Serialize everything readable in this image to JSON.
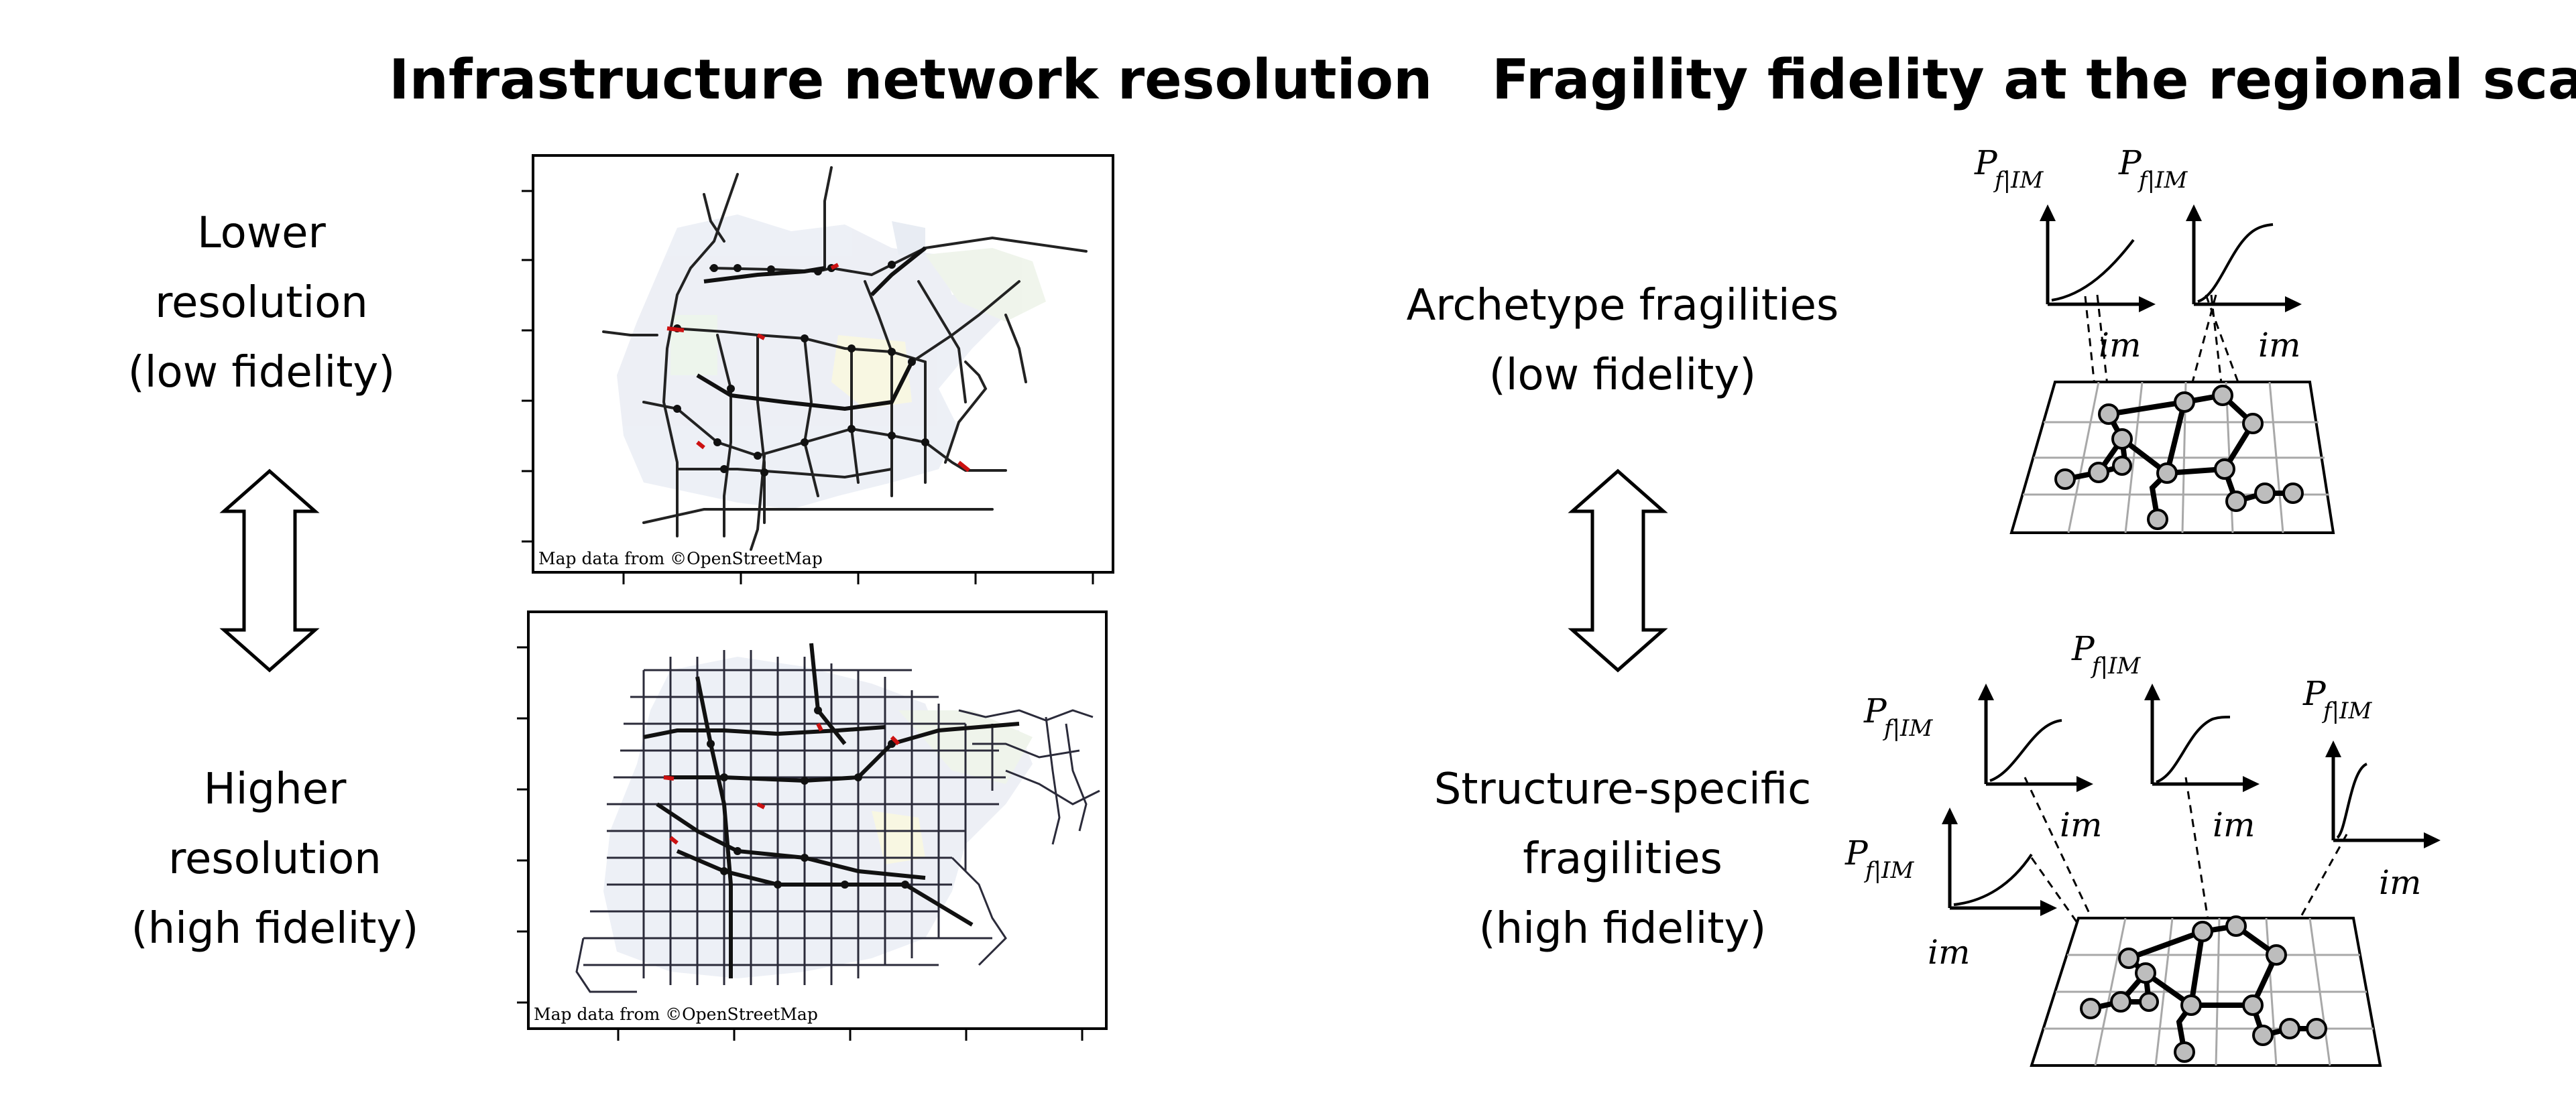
{
  "left_panel": {
    "title": "Infrastructure network resolution",
    "top_label": [
      "Lower",
      "resolution",
      "(low fidelity)"
    ],
    "bottom_label": [
      "Higher",
      "resolution",
      "(high fidelity)"
    ],
    "map_attribution": "Map data from ©OpenStreetMap"
  },
  "right_panel": {
    "title": "Fragility fidelity at the regional scale",
    "top_label": [
      "Archetype fragilities",
      "(low fidelity)"
    ],
    "bottom_label": [
      "Structure-specific",
      "fragilities",
      "(high fidelity)"
    ],
    "curve_ylabel_main": "P",
    "curve_ylabel_sub": "f|IM",
    "curve_xlabel": "im"
  },
  "colors": {
    "line": "#000000",
    "node": "#bdbdbd",
    "grid": "#a8a8a8",
    "highway": "#111111",
    "road": "#2b2b3a",
    "red": "#cc1111"
  },
  "icons": [
    "double-arrow-icon",
    "double-arrow-icon"
  ]
}
